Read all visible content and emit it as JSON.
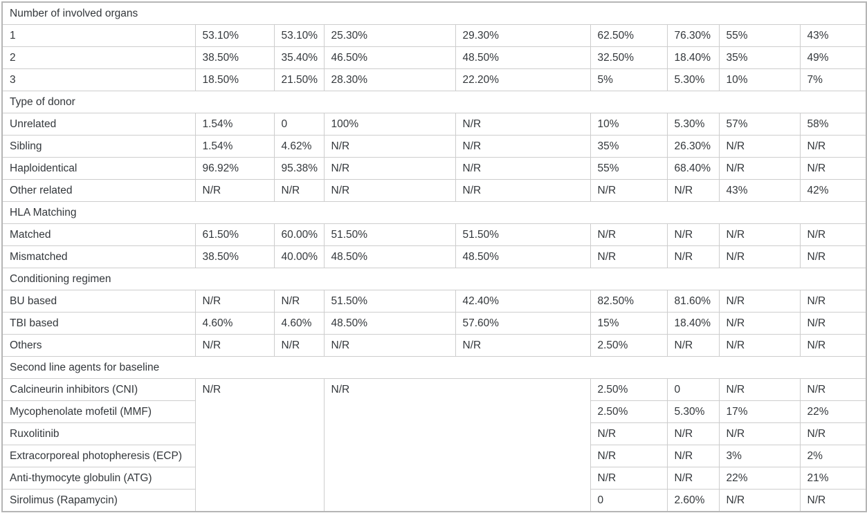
{
  "table": {
    "na_marker": "N/R",
    "sections": [
      {
        "header": "Number of involved organs",
        "rows": [
          {
            "label": "1",
            "cells": [
              "53.10%",
              "53.10%",
              "25.30%",
              "29.30%",
              "62.50%",
              "76.30%",
              "55%",
              "43%"
            ]
          },
          {
            "label": "2",
            "cells": [
              "38.50%",
              "35.40%",
              "46.50%",
              "48.50%",
              "32.50%",
              "18.40%",
              "35%",
              "49%"
            ]
          },
          {
            "label": "3",
            "cells": [
              "18.50%",
              "21.50%",
              "28.30%",
              "22.20%",
              "5%",
              "5.30%",
              "10%",
              "7%"
            ]
          }
        ]
      },
      {
        "header": "Type of donor",
        "rows": [
          {
            "label": "Unrelated",
            "cells": [
              "1.54%",
              "0",
              "100%",
              "N/R",
              "10%",
              "5.30%",
              "57%",
              "58%"
            ]
          },
          {
            "label": "Sibling",
            "cells": [
              "1.54%",
              "4.62%",
              "N/R",
              "N/R",
              "35%",
              "26.30%",
              "N/R",
              "N/R"
            ]
          },
          {
            "label": "Haploidentical",
            "cells": [
              "96.92%",
              "95.38%",
              "N/R",
              "N/R",
              "55%",
              "68.40%",
              "N/R",
              "N/R"
            ]
          },
          {
            "label": "Other related",
            "cells": [
              "N/R",
              "N/R",
              "N/R",
              "N/R",
              "N/R",
              "N/R",
              "43%",
              "42%"
            ]
          }
        ]
      },
      {
        "header": "HLA Matching",
        "rows": [
          {
            "label": "Matched",
            "cells": [
              "61.50%",
              "60.00%",
              "51.50%",
              "51.50%",
              "N/R",
              "N/R",
              "N/R",
              "N/R"
            ]
          },
          {
            "label": "Mismatched",
            "cells": [
              "38.50%",
              "40.00%",
              "48.50%",
              "48.50%",
              "N/R",
              "N/R",
              "N/R",
              "N/R"
            ]
          }
        ]
      },
      {
        "header": "Conditioning regimen",
        "rows": [
          {
            "label": "BU based",
            "cells": [
              "N/R",
              "N/R",
              "51.50%",
              "42.40%",
              "82.50%",
              "81.60%",
              "N/R",
              "N/R"
            ]
          },
          {
            "label": "TBI based",
            "cells": [
              "4.60%",
              "4.60%",
              "48.50%",
              "57.60%",
              "15%",
              "18.40%",
              "N/R",
              "N/R"
            ]
          },
          {
            "label": "Others",
            "cells": [
              "N/R",
              "N/R",
              "N/R",
              "N/R",
              "2.50%",
              "N/R",
              "N/R",
              "N/R"
            ]
          }
        ]
      },
      {
        "header": "Second line agents for baseline",
        "merged": {
          "left": "N/R",
          "mid": "N/R"
        },
        "rows": [
          {
            "label": "Calcineurin inhibitors (CNI)",
            "cells": [
              "2.50%",
              "0",
              "N/R",
              "N/R"
            ]
          },
          {
            "label": "Mycophenolate mofetil (MMF)",
            "cells": [
              "2.50%",
              "5.30%",
              "17%",
              "22%"
            ]
          },
          {
            "label": "Ruxolitinib",
            "cells": [
              "N/R",
              "N/R",
              "N/R",
              "N/R"
            ]
          },
          {
            "label": "Extracorporeal photopheresis (ECP)",
            "cells": [
              "N/R",
              "N/R",
              "3%",
              "2%"
            ]
          },
          {
            "label": "Anti-thymocyte globulin (ATG)",
            "cells": [
              "N/R",
              "N/R",
              "22%",
              "21%"
            ]
          },
          {
            "label": "Sirolimus (Rapamycin)",
            "cells": [
              "0",
              "2.60%",
              "N/R",
              "N/R"
            ]
          }
        ]
      }
    ]
  }
}
